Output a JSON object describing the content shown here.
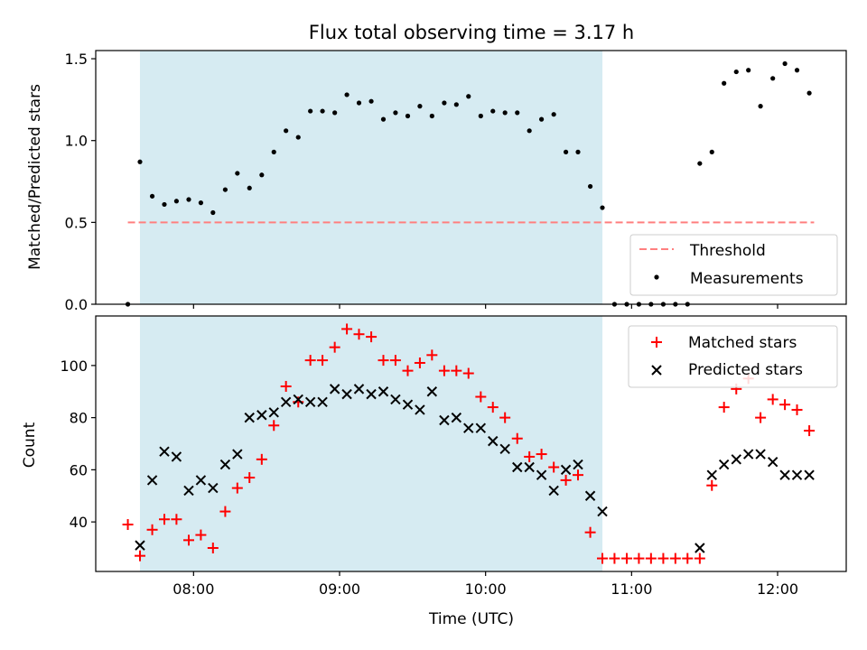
{
  "title": "Flux total observing time = 3.17 h",
  "colors": {
    "shade": "#add8e6",
    "threshold": "#ff7f7f",
    "matched": "#ff0000",
    "predicted": "#000000",
    "measurement": "#000000"
  },
  "chart_data": [
    {
      "type": "scatter",
      "panel": "top",
      "ylabel": "Matched/Predicted stars",
      "xlabel": "",
      "x_unit": "hours UTC",
      "xlim": [
        7.33,
        12.47
      ],
      "ylim": [
        0,
        1.55
      ],
      "yticks": [
        0.0,
        0.5,
        1.0,
        1.5
      ],
      "ytick_labels": [
        "0.0",
        "0.5",
        "1.0",
        "1.5"
      ],
      "xticks": [
        8,
        9,
        10,
        11,
        12
      ],
      "shaded_interval": [
        7.633,
        10.8
      ],
      "threshold": {
        "label": "Threshold",
        "value": 0.5,
        "x_range": [
          7.55,
          12.25
        ]
      },
      "legend": {
        "placement": "lower right",
        "entries": [
          "Threshold",
          "Measurements"
        ]
      },
      "series": [
        {
          "name": "Measurements",
          "x": [
            7.55,
            7.633,
            7.717,
            7.8,
            7.883,
            7.967,
            8.05,
            8.133,
            8.217,
            8.3,
            8.383,
            8.467,
            8.55,
            8.633,
            8.717,
            8.8,
            8.883,
            8.967,
            9.05,
            9.133,
            9.217,
            9.3,
            9.383,
            9.467,
            9.55,
            9.633,
            9.717,
            9.8,
            9.883,
            9.967,
            10.05,
            10.133,
            10.217,
            10.3,
            10.383,
            10.467,
            10.55,
            10.633,
            10.717,
            10.8,
            10.883,
            10.967,
            11.05,
            11.133,
            11.217,
            11.3,
            11.383,
            11.467,
            11.55,
            11.633,
            11.717,
            11.8,
            11.883,
            11.967,
            12.05,
            12.133,
            12.217
          ],
          "values": [
            0.0,
            0.87,
            0.66,
            0.61,
            0.63,
            0.64,
            0.62,
            0.56,
            0.7,
            0.8,
            0.71,
            0.79,
            0.93,
            1.06,
            1.02,
            1.18,
            1.18,
            1.17,
            1.28,
            1.23,
            1.24,
            1.13,
            1.17,
            1.15,
            1.21,
            1.15,
            1.23,
            1.22,
            1.27,
            1.15,
            1.18,
            1.17,
            1.17,
            1.06,
            1.13,
            1.16,
            0.93,
            0.93,
            0.72,
            0.59,
            0.0,
            0.0,
            0.0,
            0.0,
            0.0,
            0.0,
            0.0,
            0.86,
            0.93,
            1.35,
            1.42,
            1.43,
            1.21,
            1.38,
            1.47,
            1.43,
            1.29
          ]
        }
      ]
    },
    {
      "type": "scatter",
      "panel": "bottom",
      "ylabel": "Count",
      "xlabel": "Time (UTC)",
      "x_unit": "hours UTC",
      "xlim": [
        7.33,
        12.47
      ],
      "ylim": [
        21,
        119
      ],
      "yticks": [
        40,
        60,
        80,
        100
      ],
      "xticks": [
        8,
        9,
        10,
        11,
        12
      ],
      "xtick_labels": [
        "08:00",
        "09:00",
        "10:00",
        "11:00",
        "12:00"
      ],
      "shaded_interval": [
        7.633,
        10.8
      ],
      "legend": {
        "placement": "upper right",
        "entries": [
          "Matched stars",
          "Predicted stars"
        ]
      },
      "series": [
        {
          "name": "Matched stars",
          "marker": "+",
          "x": [
            7.55,
            7.633,
            7.717,
            7.8,
            7.883,
            7.967,
            8.05,
            8.133,
            8.217,
            8.3,
            8.383,
            8.467,
            8.55,
            8.633,
            8.717,
            8.8,
            8.883,
            8.967,
            9.05,
            9.133,
            9.217,
            9.3,
            9.383,
            9.467,
            9.55,
            9.633,
            9.717,
            9.8,
            9.883,
            9.967,
            10.05,
            10.133,
            10.217,
            10.3,
            10.383,
            10.467,
            10.55,
            10.633,
            10.717,
            10.8,
            10.883,
            10.967,
            11.05,
            11.133,
            11.217,
            11.3,
            11.383,
            11.467,
            11.55,
            11.633,
            11.717,
            11.8,
            11.883,
            11.967,
            12.05,
            12.133,
            12.217
          ],
          "values": [
            39,
            27,
            37,
            41,
            41,
            33,
            35,
            30,
            44,
            53,
            57,
            64,
            77,
            92,
            86,
            102,
            102,
            107,
            114,
            112,
            111,
            102,
            102,
            98,
            101,
            104,
            98,
            98,
            97,
            88,
            84,
            80,
            72,
            65,
            66,
            61,
            56,
            58,
            36,
            26,
            26,
            26,
            26,
            26,
            26,
            26,
            26,
            26,
            54,
            84,
            91,
            95,
            80,
            87,
            85,
            83,
            75
          ]
        },
        {
          "name": "Predicted stars",
          "marker": "x",
          "x": [
            7.633,
            7.717,
            7.8,
            7.883,
            7.967,
            8.05,
            8.133,
            8.217,
            8.3,
            8.383,
            8.467,
            8.55,
            8.633,
            8.717,
            8.8,
            8.883,
            8.967,
            9.05,
            9.133,
            9.217,
            9.3,
            9.383,
            9.467,
            9.55,
            9.633,
            9.717,
            9.8,
            9.883,
            9.967,
            10.05,
            10.133,
            10.217,
            10.3,
            10.383,
            10.467,
            10.55,
            10.633,
            10.717,
            10.8,
            11.467,
            11.55,
            11.633,
            11.717,
            11.8,
            11.883,
            11.967,
            12.05,
            12.133,
            12.217
          ],
          "values": [
            31,
            56,
            67,
            65,
            52,
            56,
            53,
            62,
            66,
            80,
            81,
            82,
            86,
            87,
            86,
            86,
            91,
            89,
            91,
            89,
            90,
            87,
            85,
            83,
            90,
            79,
            80,
            76,
            76,
            71,
            68,
            61,
            61,
            58,
            52,
            60,
            62,
            50,
            44,
            30,
            58,
            62,
            64,
            66,
            66,
            63,
            58,
            58,
            58
          ]
        }
      ]
    }
  ]
}
